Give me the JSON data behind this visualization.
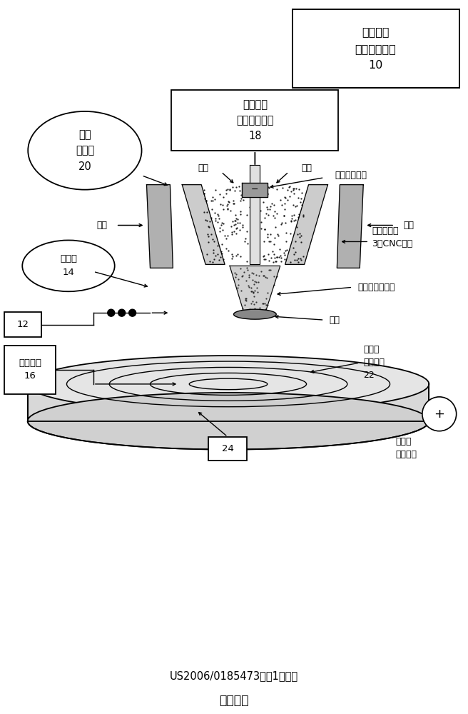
{
  "bg_color": "#ffffff",
  "title_bottom1": "US2006/0185473的图1的复制",
  "title_bottom2": "现有技术",
  "box_top_right": "等离子体\n转移电弧系统\n10",
  "box_torch": "等离子体\n转移电弧焊炬\n18",
  "label_power": "功率\n供给器\n20",
  "label_wire": "送丝机\n14",
  "label_alloy": "合金粉末\n16",
  "label_electrode": "非自耗钨电极",
  "label_argon_left": "氩气",
  "label_argon_right": "氩气",
  "label_argon_center_left": "氩气",
  "label_argon_center_right": "氩气",
  "label_cnc": "焊炬位置的\n3轴CNC控制",
  "label_plasma": "高温氩等离子体",
  "label_pool": "熔池",
  "label_near": "近净形\n沉积部件\n22",
  "label_rotate": "旋转和\n倾斜控制",
  "label_12": "12",
  "label_24": "24",
  "label_plus": "+"
}
